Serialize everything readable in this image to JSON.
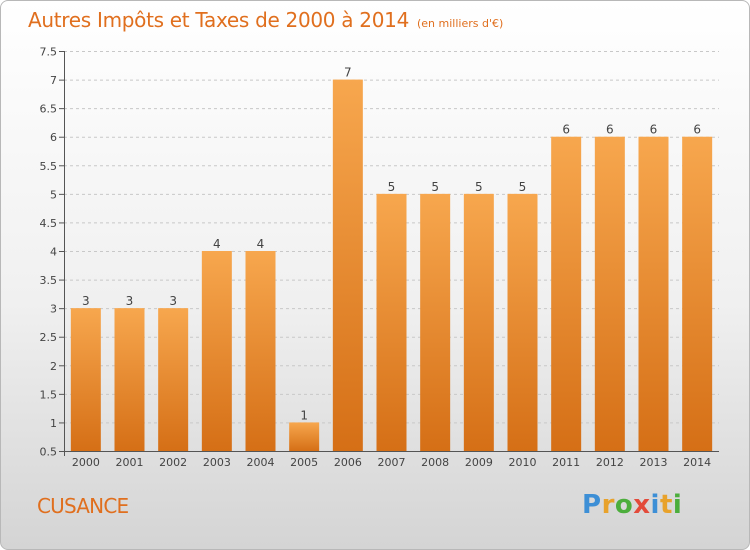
{
  "title": "Autres Impôts et Taxes de 2000 à 2014",
  "unit": "(en milliers d'€)",
  "commune": "CUSANCE",
  "logo": {
    "letters": [
      "P",
      "r",
      "o",
      "x",
      "i",
      "t",
      "i"
    ],
    "colors": [
      "#3d8fd6",
      "#e8a22b",
      "#4cae3c",
      "#e34b3b",
      "#3d8fd6",
      "#e8a22b",
      "#4cae3c"
    ]
  },
  "colors": {
    "bar_light": "#f7a74e",
    "bar_dark": "#d56f16",
    "accent": "#e06f1e"
  },
  "chart_data": {
    "type": "bar",
    "categories": [
      "2000",
      "2001",
      "2002",
      "2003",
      "2004",
      "2005",
      "2006",
      "2007",
      "2008",
      "2009",
      "2010",
      "2011",
      "2012",
      "2013",
      "2014"
    ],
    "values": [
      3,
      3,
      3,
      4,
      4,
      1,
      7,
      5,
      5,
      5,
      5,
      6,
      6,
      6,
      6
    ],
    "data_labels": [
      "3",
      "3",
      "3",
      "4",
      "4",
      "1",
      "7",
      "5",
      "5",
      "5",
      "5",
      "6",
      "6",
      "6",
      "6"
    ],
    "ylim": [
      0.5,
      7.5
    ],
    "yticks": [
      0.5,
      1,
      1.5,
      2,
      2.5,
      3,
      3.5,
      4,
      4.5,
      5,
      5.5,
      6,
      6.5,
      7,
      7.5
    ],
    "ytick_labels": [
      "0.5",
      "1",
      "1.5",
      "2",
      "2.5",
      "3",
      "3.5",
      "4",
      "4.5",
      "5",
      "5.5",
      "6",
      "6.5",
      "7",
      "7.5"
    ],
    "grid": "horizontal dashed"
  }
}
